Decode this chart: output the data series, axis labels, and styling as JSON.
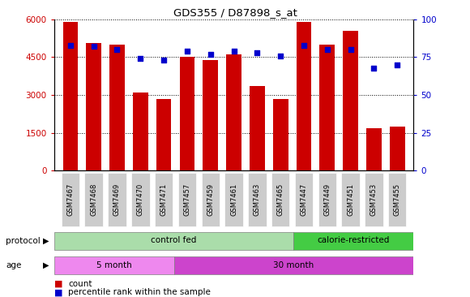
{
  "title": "GDS355 / D87898_s_at",
  "samples": [
    "GSM7467",
    "GSM7468",
    "GSM7469",
    "GSM7470",
    "GSM7471",
    "GSM7457",
    "GSM7459",
    "GSM7461",
    "GSM7463",
    "GSM7465",
    "GSM7447",
    "GSM7449",
    "GSM7451",
    "GSM7453",
    "GSM7455"
  ],
  "counts": [
    5900,
    5050,
    5000,
    3100,
    2850,
    4520,
    4380,
    4620,
    3350,
    2850,
    5900,
    5000,
    5550,
    1700,
    1750
  ],
  "percentiles": [
    83,
    82,
    80,
    74,
    73,
    79,
    77,
    79,
    78,
    76,
    83,
    80,
    80,
    68,
    70
  ],
  "bar_color": "#cc0000",
  "dot_color": "#0000cc",
  "background_color": "#ffffff",
  "tick_label_color_left": "#cc0000",
  "tick_label_color_right": "#0000cc",
  "ylim_left": [
    0,
    6000
  ],
  "ylim_right": [
    0,
    100
  ],
  "yticks_left": [
    0,
    1500,
    3000,
    4500,
    6000
  ],
  "yticks_right": [
    0,
    25,
    50,
    75,
    100
  ],
  "protocol_groups": [
    {
      "label": "control fed",
      "start": 0,
      "end": 10,
      "color": "#aaddaa"
    },
    {
      "label": "calorie-restricted",
      "start": 10,
      "end": 15,
      "color": "#44cc44"
    }
  ],
  "age_groups": [
    {
      "label": "5 month",
      "start": 0,
      "end": 5,
      "color": "#ee88ee"
    },
    {
      "label": "30 month",
      "start": 5,
      "end": 15,
      "color": "#cc44cc"
    }
  ],
  "protocol_label": "protocol",
  "age_label": "age",
  "legend_count_label": "count",
  "legend_pct_label": "percentile rank within the sample",
  "xticklabel_bg": "#cccccc"
}
